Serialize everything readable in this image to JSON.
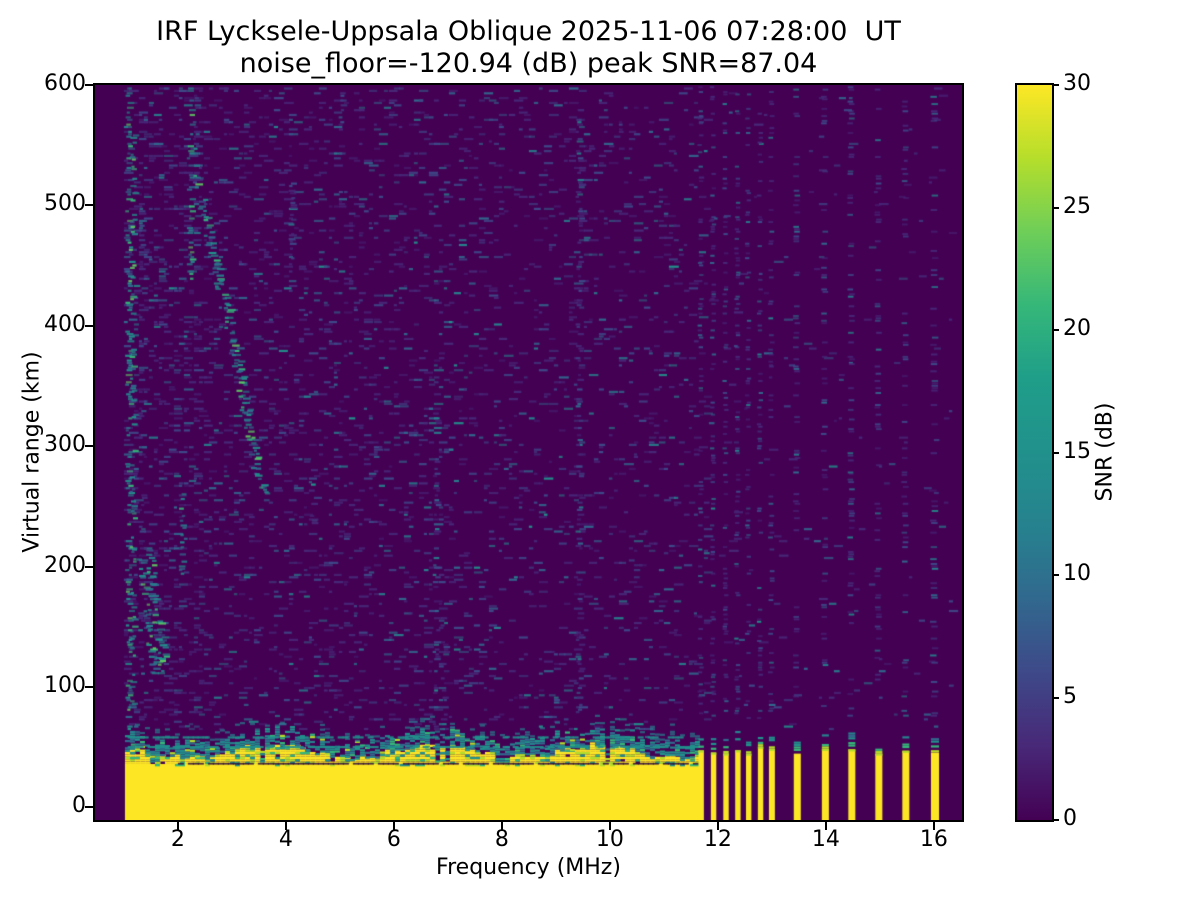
{
  "chart_data": {
    "type": "heatmap",
    "title_line1": "IRF Lycksele-Uppsala Oblique 2025-11-06 07:28:00  UT",
    "title_line2": "noise_floor=-120.94 (dB) peak SNR=87.04",
    "station": "IRF Lycksele-Uppsala Oblique",
    "timestamp_ut": "2025-11-06 07:28:00",
    "noise_floor_db": -120.94,
    "peak_snr_db": 87.04,
    "xlabel": "Frequency (MHz)",
    "ylabel": "Virtual range (km)",
    "colorbar_label": "SNR (dB)",
    "xlim": [
      0.465,
      16.52
    ],
    "ylim": [
      -10.5,
      600
    ],
    "xticks": [
      2,
      4,
      6,
      8,
      10,
      12,
      14,
      16
    ],
    "yticks": [
      0,
      100,
      200,
      300,
      400,
      500,
      600
    ],
    "colorbar_ticks": [
      0,
      5,
      10,
      15,
      20,
      25,
      30
    ],
    "snr_range_db": [
      0,
      30
    ],
    "colormap": "viridis",
    "viridis_stops": [
      "#440154",
      "#482878",
      "#3e4989",
      "#31688e",
      "#26828e",
      "#21918c",
      "#1f9e89",
      "#35b779",
      "#6ece58",
      "#b5de2b",
      "#fde725"
    ],
    "background_color": "#440154",
    "saturated_color": "#fde725",
    "grid": false,
    "data_freq_start_mhz": 1.0,
    "data_freq_end_mhz": 16.45,
    "ground_clutter_band": {
      "freq_start_mhz": 1.02,
      "freq_end_mhz": 11.62,
      "solid_top_km": 36,
      "ragged_top_km": 52,
      "teal_top_km": 65,
      "dark_line_km": 37,
      "teal_layer_rows_km": [
        51,
        59
      ]
    },
    "tx_stripes": [
      {
        "freq": 11.69,
        "width_mhz": 0.1
      },
      {
        "freq": 11.92,
        "width_mhz": 0.1
      },
      {
        "freq": 12.15,
        "width_mhz": 0.1
      },
      {
        "freq": 12.37,
        "width_mhz": 0.1
      },
      {
        "freq": 12.57,
        "width_mhz": 0.1
      },
      {
        "freq": 12.79,
        "width_mhz": 0.1
      },
      {
        "freq": 13.0,
        "width_mhz": 0.11
      },
      {
        "freq": 13.47,
        "width_mhz": 0.13
      },
      {
        "freq": 13.99,
        "width_mhz": 0.13
      },
      {
        "freq": 14.48,
        "width_mhz": 0.13
      },
      {
        "freq": 14.98,
        "width_mhz": 0.13
      },
      {
        "freq": 15.48,
        "width_mhz": 0.13
      },
      {
        "freq": 16.02,
        "width_mhz": 0.15
      }
    ],
    "stripe_top_km": 48,
    "echo_trace_segments": [
      {
        "name": "oblique-descending-trace",
        "points": [
          [
            2.42,
            500
          ],
          [
            2.52,
            480
          ],
          [
            2.62,
            460
          ],
          [
            2.72,
            440
          ],
          [
            2.82,
            420
          ],
          [
            2.92,
            400
          ],
          [
            3.02,
            380
          ],
          [
            3.12,
            356
          ],
          [
            3.22,
            330
          ],
          [
            3.32,
            305
          ],
          [
            3.42,
            282
          ],
          [
            3.52,
            268
          ],
          [
            3.6,
            258
          ]
        ],
        "density": 0.85,
        "bright": true
      },
      {
        "name": "upper-faint-lead",
        "points": [
          [
            2.28,
            545
          ],
          [
            2.36,
            520
          ],
          [
            2.42,
            500
          ]
        ],
        "density": 0.4,
        "bright": true
      },
      {
        "name": "low-left-streak-a",
        "points": [
          [
            1.3,
            205
          ],
          [
            1.37,
            180
          ],
          [
            1.44,
            155
          ],
          [
            1.51,
            130
          ],
          [
            1.57,
            108
          ]
        ],
        "density": 0.9,
        "bright": true
      },
      {
        "name": "low-left-streak-b",
        "points": [
          [
            1.43,
            212
          ],
          [
            1.5,
            188
          ],
          [
            1.57,
            163
          ],
          [
            1.64,
            138
          ],
          [
            1.71,
            116
          ]
        ],
        "density": 0.8,
        "bright": true
      }
    ],
    "noise_columns": [
      {
        "freq": 1.06,
        "km": [
          40,
          600
        ],
        "density": 0.5,
        "bright": true
      },
      {
        "freq": 1.14,
        "km": [
          45,
          600
        ],
        "density": 0.32,
        "bright": true
      },
      {
        "freq": 1.3,
        "km": [
          80,
          500
        ],
        "density": 0.16,
        "bright": false
      },
      {
        "freq": 2.05,
        "km": [
          195,
          275
        ],
        "density": 0.45,
        "bright": true
      },
      {
        "freq": 2.2,
        "km": [
          440,
          600
        ],
        "density": 0.45,
        "bright": true
      },
      {
        "freq": 2.3,
        "km": [
          470,
          600
        ],
        "density": 0.28,
        "bright": false
      },
      {
        "freq": 4.07,
        "km": [
          455,
          535
        ],
        "density": 0.33,
        "bright": false
      },
      {
        "freq": 4.45,
        "km": [
          235,
          285
        ],
        "density": 0.28,
        "bright": false
      },
      {
        "freq": 5.0,
        "km": [
          550,
          600
        ],
        "density": 0.3,
        "bright": false
      },
      {
        "freq": 6.75,
        "km": [
          60,
          330
        ],
        "density": 0.33,
        "bright": false
      },
      {
        "freq": 6.9,
        "km": [
          60,
          200
        ],
        "density": 0.22,
        "bright": false
      },
      {
        "freq": 9.4,
        "km": [
          70,
          590
        ],
        "density": 0.4,
        "bright": false
      }
    ],
    "base_noise": {
      "density_f_below_2p5": 0.16,
      "density_f_below_7": 0.1,
      "density_f_below_11p8": 0.075,
      "density_f_above_11p8": 0.012,
      "km_min": 66,
      "km_max": 600
    },
    "noise_seed": 1337
  }
}
